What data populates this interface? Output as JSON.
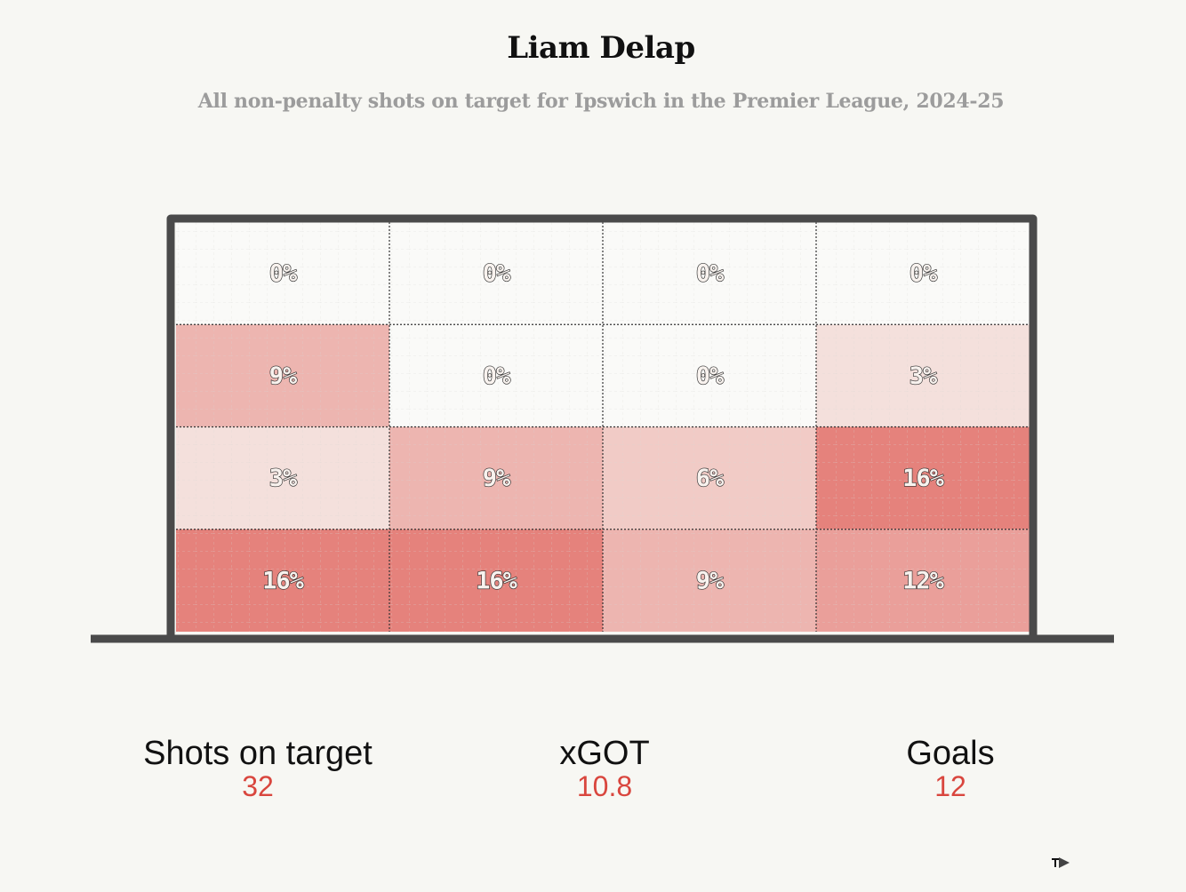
{
  "chart_data": {
    "type": "heatmap",
    "title": "Liam Delap",
    "subtitle": "All non-penalty shots on target for Ipswich in the Premier League, 2024-25",
    "rows": 4,
    "cols": 4,
    "values": [
      [
        0,
        0,
        0,
        0
      ],
      [
        9,
        0,
        0,
        3
      ],
      [
        3,
        9,
        6,
        16
      ],
      [
        16,
        16,
        9,
        12
      ]
    ],
    "labels": [
      [
        "0%",
        "0%",
        "0%",
        "0%"
      ],
      [
        "9%",
        "0%",
        "0%",
        "3%"
      ],
      [
        "3%",
        "9%",
        "6%",
        "16%"
      ],
      [
        "16%",
        "16%",
        "9%",
        "12%"
      ]
    ],
    "color_scale": {
      "low": "#f8f6f2",
      "high": "#e5827c"
    },
    "grid": true
  },
  "stats": [
    {
      "label": "Shots on target",
      "value": "32"
    },
    {
      "label": "xGOT",
      "value": "10.8"
    },
    {
      "label": "Goals",
      "value": "12"
    }
  ],
  "colors": {
    "background": "#f7f7f3",
    "frame": "#4a4a4a",
    "accent": "#d9463e"
  },
  "icons": {
    "corner": "brand-logo-icon"
  }
}
